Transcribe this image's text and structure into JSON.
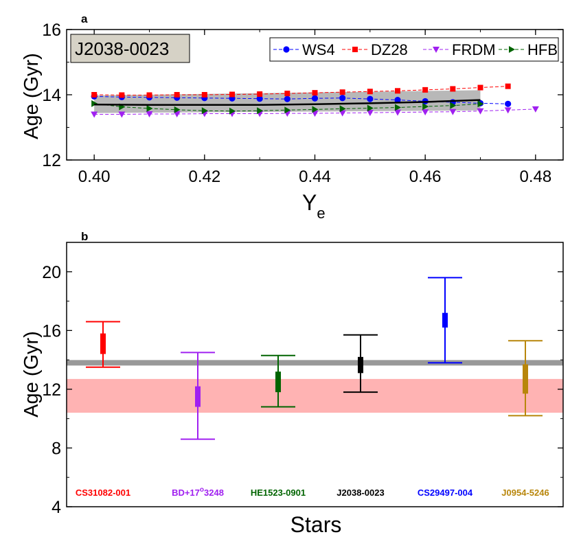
{
  "panel_a": {
    "label": "a",
    "box_label": "J2038-0023",
    "ylabel": "Age (Gyr)",
    "xlabel_main": "Y",
    "xlabel_sub": "e",
    "legend": [
      "WS4",
      "DZ28",
      "FRDM",
      "HFB"
    ]
  },
  "panel_b": {
    "label": "b",
    "ylabel": "Age (Gyr)",
    "xlabel": "Stars",
    "stars": [
      {
        "name": "CS31082-001",
        "color": "#ff0000"
      },
      {
        "name_pre": "BD+17",
        "name_sup": "o",
        "name_post": "3248",
        "color": "#a020f0"
      },
      {
        "name": "HE1523-0901",
        "color": "#006400"
      },
      {
        "name": "J2038-0023",
        "color": "#000000"
      },
      {
        "name": "CS29497-004",
        "color": "#0000ff"
      },
      {
        "name": "J0954-5246",
        "color": "#b8860b"
      }
    ]
  },
  "chart_data": [
    {
      "type": "line",
      "title": "",
      "xlabel": "Ye",
      "ylabel": "Age (Gyr)",
      "xlim": [
        0.395,
        0.485
      ],
      "ylim": [
        12,
        16
      ],
      "xticks": [
        0.4,
        0.42,
        0.44,
        0.46,
        0.48
      ],
      "yticks": [
        12,
        14,
        16
      ],
      "legend_position": "top-right",
      "annotation": "J2038-0023",
      "series": [
        {
          "name": "WS4",
          "color": "#0000ff",
          "marker": "circle",
          "x": [
            0.4,
            0.405,
            0.41,
            0.415,
            0.42,
            0.425,
            0.43,
            0.435,
            0.44,
            0.445,
            0.45,
            0.455,
            0.46,
            0.465,
            0.47,
            0.475
          ],
          "y": [
            13.95,
            13.93,
            13.92,
            13.91,
            13.9,
            13.89,
            13.88,
            13.87,
            13.89,
            13.9,
            13.87,
            13.84,
            13.8,
            13.77,
            13.74,
            13.72
          ]
        },
        {
          "name": "DZ28",
          "color": "#ff0000",
          "marker": "square",
          "x": [
            0.4,
            0.405,
            0.41,
            0.415,
            0.42,
            0.425,
            0.43,
            0.435,
            0.44,
            0.445,
            0.45,
            0.455,
            0.46,
            0.465,
            0.47,
            0.475
          ],
          "y": [
            14.0,
            13.99,
            13.99,
            14.0,
            14.0,
            14.01,
            14.02,
            14.04,
            14.06,
            14.08,
            14.1,
            14.12,
            14.15,
            14.18,
            14.22,
            14.26
          ]
        },
        {
          "name": "FRDM",
          "color": "#a020f0",
          "marker": "triangle-down",
          "x": [
            0.4,
            0.405,
            0.41,
            0.415,
            0.42,
            0.425,
            0.43,
            0.435,
            0.44,
            0.445,
            0.45,
            0.455,
            0.46,
            0.465,
            0.47,
            0.475,
            0.48
          ],
          "y": [
            13.4,
            13.4,
            13.41,
            13.41,
            13.42,
            13.42,
            13.42,
            13.43,
            13.43,
            13.44,
            13.45,
            13.46,
            13.47,
            13.48,
            13.5,
            13.53,
            13.56
          ]
        },
        {
          "name": "HFB",
          "color": "#006400",
          "marker": "triangle-right",
          "x": [
            0.4,
            0.405,
            0.41,
            0.415,
            0.42,
            0.425,
            0.43,
            0.435,
            0.44,
            0.445,
            0.45,
            0.455,
            0.46,
            0.465,
            0.47
          ],
          "y": [
            13.73,
            13.63,
            13.58,
            13.54,
            13.51,
            13.5,
            13.51,
            13.53,
            13.55,
            13.57,
            13.59,
            13.61,
            13.64,
            13.67,
            13.72
          ]
        },
        {
          "name": "",
          "color": "#000000",
          "marker": "none",
          "kind": "mean-line",
          "x": [
            0.4,
            0.41,
            0.42,
            0.43,
            0.44,
            0.45,
            0.46,
            0.47
          ],
          "y": [
            13.7,
            13.69,
            13.69,
            13.69,
            13.71,
            13.74,
            13.78,
            13.84
          ]
        }
      ],
      "band": {
        "color": "#b0b0b0",
        "x": [
          0.4,
          0.47
        ],
        "upper": [
          13.98,
          14.14
        ],
        "lower": [
          13.44,
          13.52
        ]
      }
    },
    {
      "type": "errorbar",
      "title": "",
      "xlabel": "Stars",
      "ylabel": "Age (Gyr)",
      "ylim": [
        4,
        22
      ],
      "yticks": [
        4,
        8,
        12,
        16,
        20
      ],
      "categories": [
        "CS31082-001",
        "BD+17o3248",
        "HE1523-0901",
        "J2038-0023",
        "CS29497-004",
        "J0954-5246"
      ],
      "values": [
        {
          "mid": 15.1,
          "box_low": 14.4,
          "box_high": 15.8,
          "err_low": 13.5,
          "err_high": 16.6
        },
        {
          "mid": 11.5,
          "box_low": 10.8,
          "box_high": 12.2,
          "err_low": 8.6,
          "err_high": 14.5
        },
        {
          "mid": 12.5,
          "box_low": 11.8,
          "box_high": 13.2,
          "err_low": 10.8,
          "err_high": 14.3
        },
        {
          "mid": 13.6,
          "box_low": 13.1,
          "box_high": 14.2,
          "err_low": 11.8,
          "err_high": 15.7
        },
        {
          "mid": 16.7,
          "box_low": 16.2,
          "box_high": 17.2,
          "err_low": 13.8,
          "err_high": 19.6
        },
        {
          "mid": 12.7,
          "box_low": 11.7,
          "box_high": 13.7,
          "err_low": 10.2,
          "err_high": 15.3
        }
      ],
      "hline": {
        "y": 13.8,
        "color": "#999999"
      },
      "band": {
        "low": 10.4,
        "high": 12.7,
        "color": "#ffb3b3"
      }
    }
  ]
}
